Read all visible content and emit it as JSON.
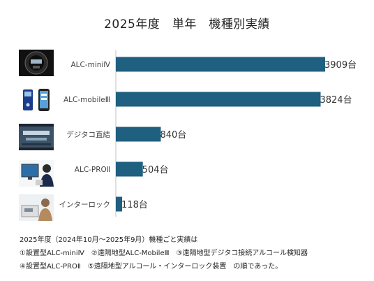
{
  "chart_data": {
    "type": "bar",
    "orientation": "horizontal",
    "title": "2025年度　単年　機種別実績",
    "categories": [
      "ALC-miniⅣ",
      "ALC-mobileⅢ",
      "デジタコ直結",
      "ALC-PROⅡ",
      "インターロック"
    ],
    "values": [
      3909,
      3824,
      840,
      504,
      118
    ],
    "data_labels": [
      "3909台",
      "3824台",
      "840台",
      "504台",
      "118台"
    ],
    "xlim": [
      0,
      4000
    ],
    "grid": false,
    "bar_color": "#1f5f7f"
  },
  "notes": {
    "line1": "2025年度（2024年10月～2025年9月）機種ごと実績は",
    "line2": "①設置型ALC-miniⅣ　②遠隔地型ALC-MobileⅢ　③遠隔地型デジタコ接続アルコール検知器",
    "line3": "④設置型ALC-PROⅡ　⑤遠隔地型アルコール・インターロック装置　の順であった。"
  }
}
